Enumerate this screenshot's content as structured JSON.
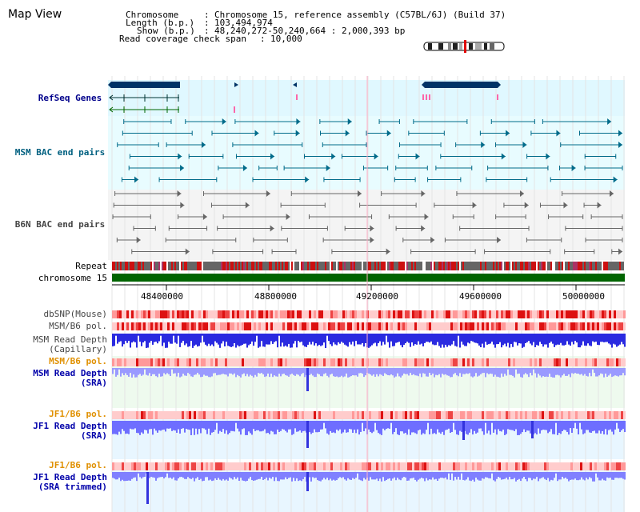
{
  "title": "Map View",
  "info": {
    "chromosome_label": "Chromosome",
    "chromosome_value": "Chromosome 15, reference assembly (C57BL/6J) (Build 37)",
    "length_label": "Length (b.p.)",
    "length_value": "103,494,974",
    "show_label": "Show (b.p.)",
    "show_value": "48,240,272-50,240,664 : 2,000,393 bp",
    "coverage_label": "Read coverage check span",
    "coverage_value": "10,000"
  },
  "tracks": {
    "refseq": "RefSeq Genes",
    "msm_bac": "MSM BAC end pairs",
    "b6n_bac": "B6N BAC end pairs",
    "repeat": "Repeat",
    "chromosome": "chromosome 15",
    "dbsnp": "dbSNP(Mouse)",
    "msm_b6_pol": "MSM/B6 pol.",
    "msm_depth_cap_1": "MSM Read Depth",
    "msm_depth_cap_2": "(Capillary)",
    "msm_b6_pol_2": "MSM/B6 pol.",
    "msm_depth_sra_1": "MSM Read Depth",
    "msm_depth_sra_2": "(SRA)",
    "jf1_b6_pol": "JF1/B6 pol.",
    "jf1_depth_sra_1": "JF1 Read Depth",
    "jf1_depth_sra_2": "(SRA)",
    "jf1_b6_pol_2": "JF1/B6 pol.",
    "jf1_depth_trim_1": "JF1 Read Depth",
    "jf1_depth_trim_2": "(SRA trimmed)"
  },
  "axis": {
    "ticks": [
      "48400000",
      "48800000",
      "49200000",
      "49600000",
      "50000000"
    ]
  },
  "colors": {
    "navy": "#00008b",
    "teal": "#006080",
    "orange": "#e09000",
    "chromosome": "#006400",
    "depth": "#5a5aff"
  }
}
